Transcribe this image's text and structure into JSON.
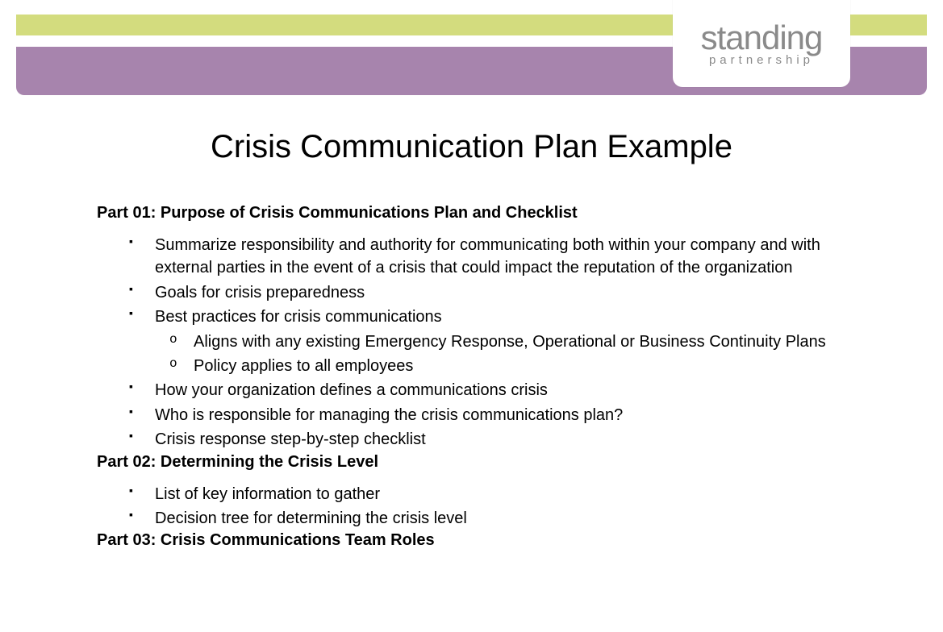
{
  "colors": {
    "green_bar": "#d3dc7e",
    "purple_bar": "#a784ad",
    "logo_text": "#8a8a8a",
    "body_text": "#000000",
    "background": "#ffffff"
  },
  "typography": {
    "title_fontsize": 40,
    "heading_fontsize": 20,
    "body_fontsize": 20,
    "logo_main_fontsize": 42,
    "logo_sub_fontsize": 15
  },
  "logo": {
    "main": "standing",
    "sub": "partnership"
  },
  "title": "Crisis Communication Plan Example",
  "parts": [
    {
      "heading": "Part 01: Purpose of Crisis Communications Plan and Checklist",
      "items": [
        {
          "text": "Summarize responsibility and authority for communicating both within your company and with external parties in the event of a crisis that could impact the reputation of the organization"
        },
        {
          "text": "Goals for crisis preparedness"
        },
        {
          "text": "Best practices for crisis communications",
          "sub": [
            "Aligns with any existing Emergency Response, Operational or Business Continuity Plans",
            "Policy applies to all employees"
          ]
        },
        {
          "text": "How your organization defines a communications crisis"
        },
        {
          "text": "Who is responsible for managing the crisis communications plan?"
        },
        {
          "text": "Crisis response step-by-step checklist"
        }
      ]
    },
    {
      "heading": "Part 02: Determining the Crisis Level",
      "items": [
        {
          "text": "List of key information to gather"
        },
        {
          "text": "Decision tree for determining the crisis level"
        }
      ]
    },
    {
      "heading": "Part 03: Crisis Communications Team Roles",
      "items": []
    }
  ]
}
